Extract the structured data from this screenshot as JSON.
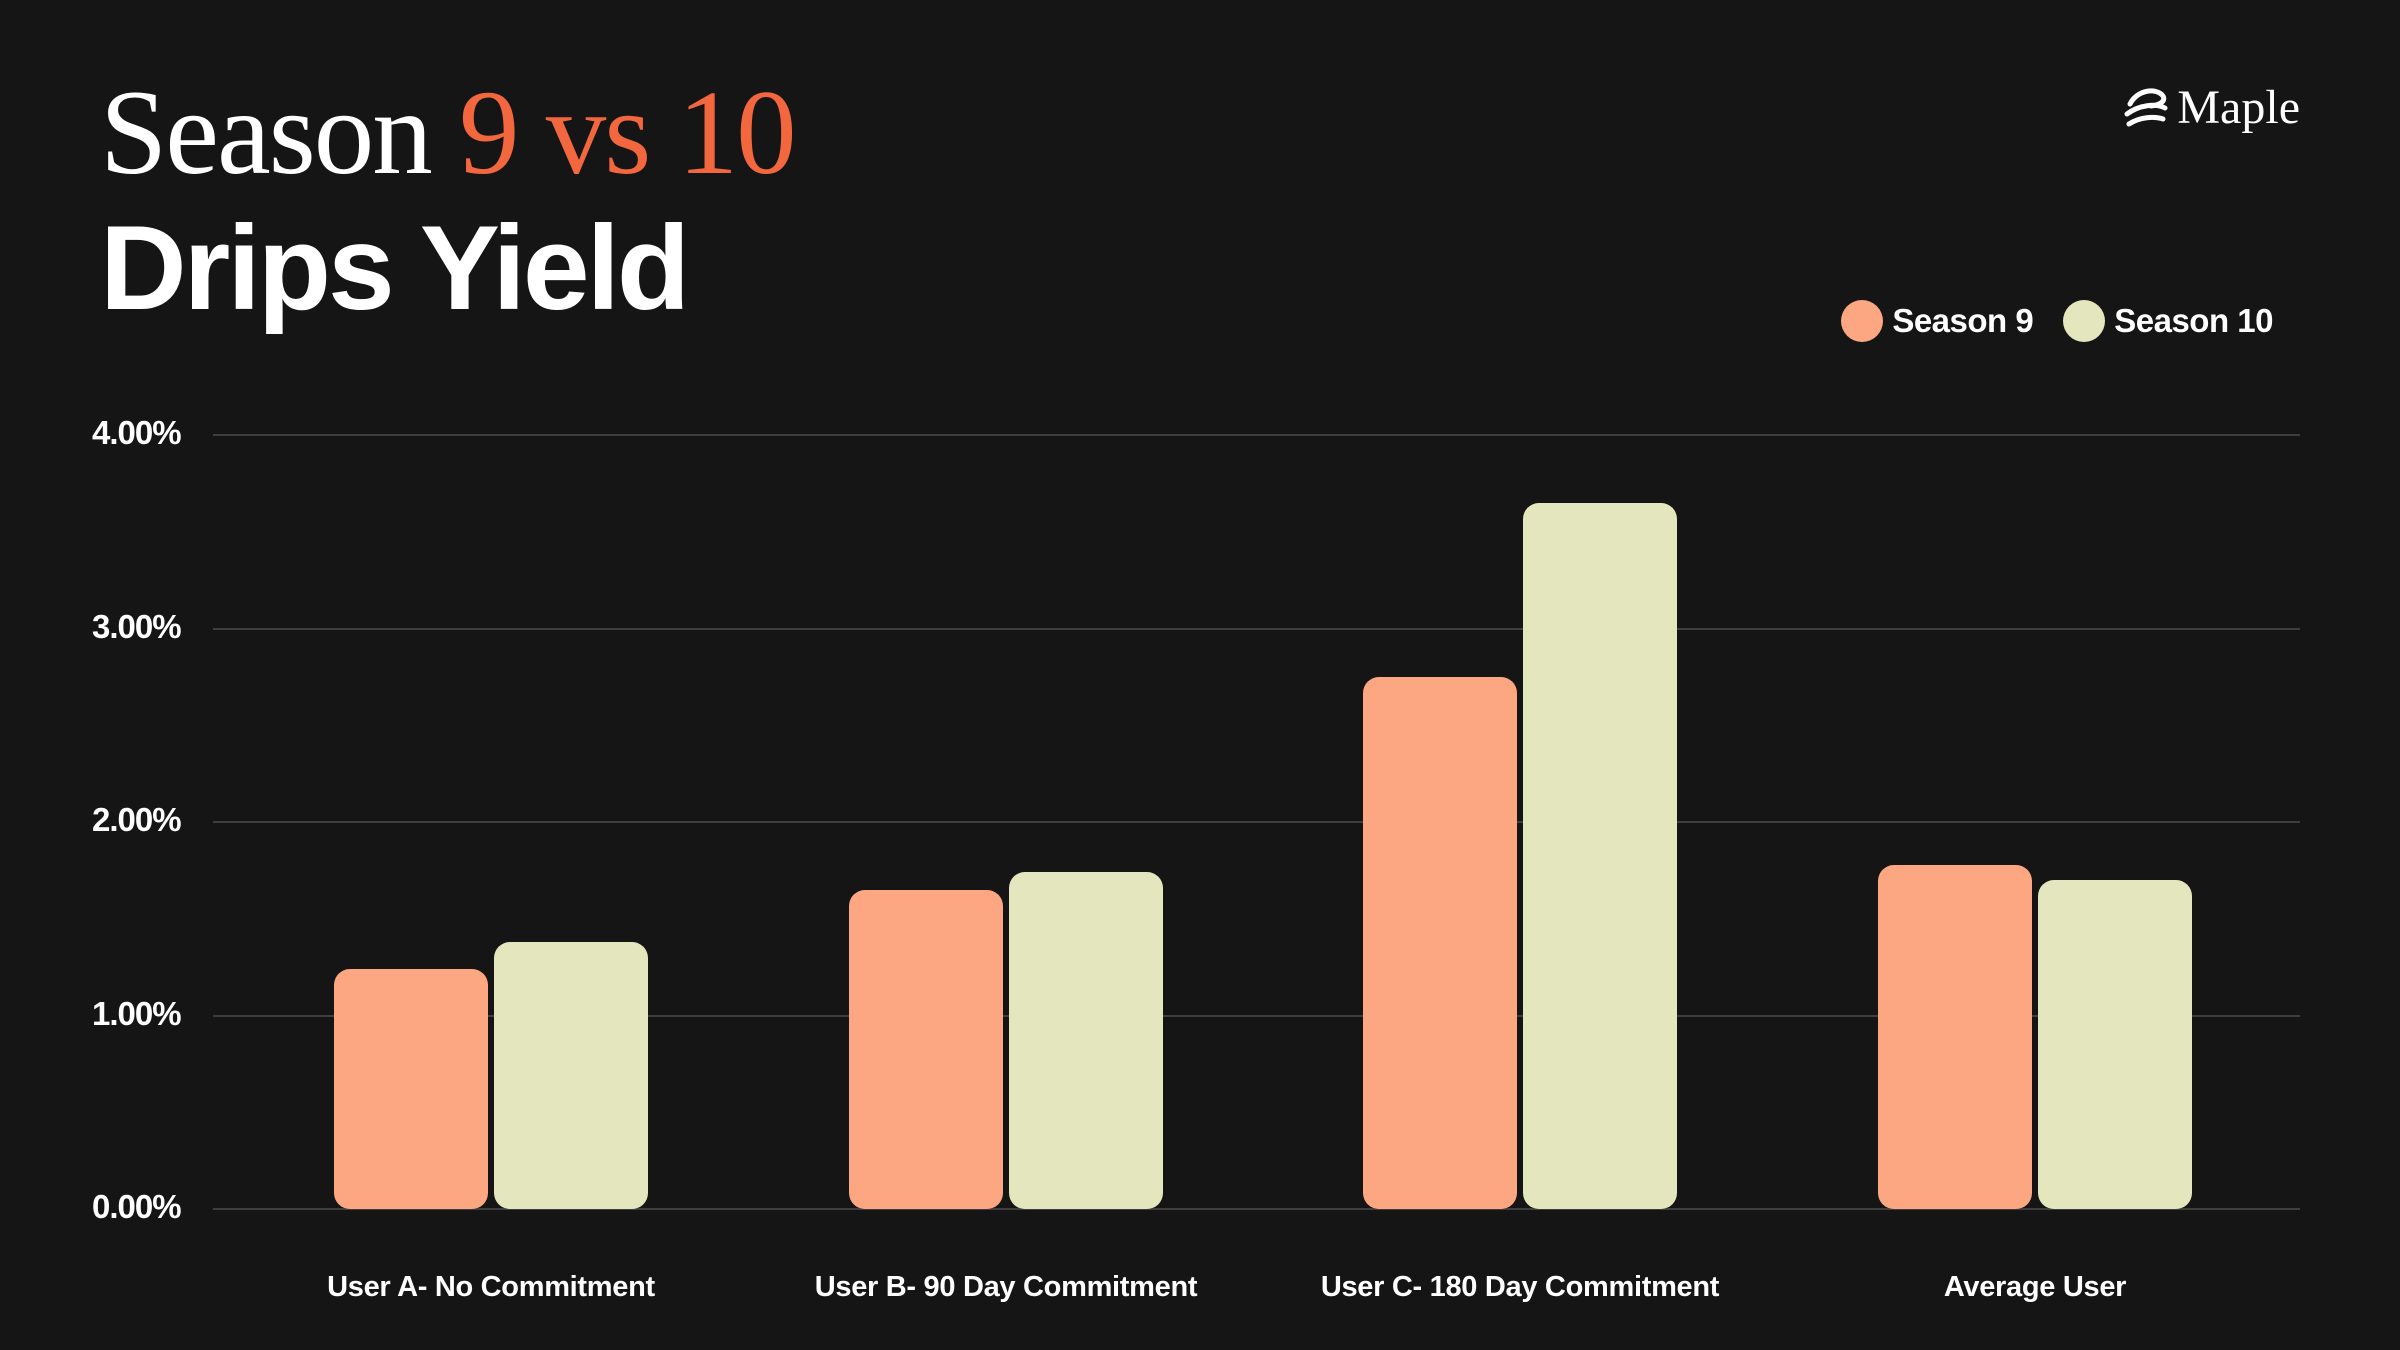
{
  "page": {
    "background": "#151515",
    "text_color": "#FFFFFF",
    "gridline_color": "#3E3E3E"
  },
  "header": {
    "title_line1_white": "Season",
    "title_line1_accent": "9 vs 10",
    "title_line2": "Drips Yield",
    "accent_color": "#F2673D"
  },
  "logo": {
    "brand": "Maple",
    "mark": "maple-swoosh-icon"
  },
  "chart_data": {
    "type": "bar",
    "title": "Season 9 vs 10 Drips Yield",
    "categories": [
      "User A- No Commitment",
      "User B- 90 Day Commitment",
      "User C- 180 Day Commitment",
      "Average User"
    ],
    "series": [
      {
        "name": "Season 9",
        "color": "#FCA781",
        "values": [
          1.24,
          1.65,
          2.75,
          1.78
        ]
      },
      {
        "name": "Season 10",
        "color": "#E4E7BE",
        "values": [
          1.38,
          1.74,
          3.65,
          1.7
        ]
      }
    ],
    "unit": "%",
    "ylim": [
      0,
      4
    ],
    "yticks": [
      {
        "label": "4.00%",
        "value": 4
      },
      {
        "label": "3.00%",
        "value": 3
      },
      {
        "label": "2.00%",
        "value": 2
      },
      {
        "label": "1.00%",
        "value": 1
      },
      {
        "label": "0.00%",
        "value": 0
      }
    ],
    "grid": true,
    "legend_position": "top-right",
    "xlabel": "",
    "ylabel": ""
  }
}
